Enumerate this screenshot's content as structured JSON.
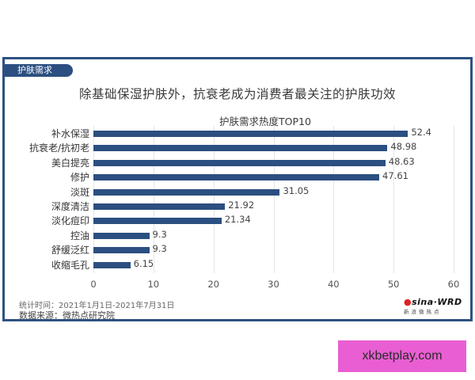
{
  "tag": "护肤需求",
  "headline": "除基础保湿护肤外，抗衰老成为消费者最关注的护肤功效",
  "chart_data": {
    "type": "bar",
    "orientation": "horizontal",
    "title": "护肤需求热度TOP10",
    "categories": [
      "补水保湿",
      "抗衰老/抗初老",
      "美白提亮",
      "修护",
      "淡斑",
      "深度清洁",
      "淡化痘印",
      "控油",
      "舒缓泛红",
      "收缩毛孔"
    ],
    "values": [
      52.4,
      48.98,
      48.63,
      47.61,
      31.05,
      21.92,
      21.34,
      9.3,
      9.3,
      6.15
    ],
    "value_labels": [
      "52.4",
      "48.98",
      "48.63",
      "47.61",
      "31.05",
      "21.92",
      "21.34",
      "9.3",
      "9.3",
      "6.15"
    ],
    "xlabel": "",
    "ylabel": "",
    "xlim": [
      0,
      60
    ],
    "x_ticks": [
      "0",
      "10",
      "20",
      "30",
      "40",
      "50",
      "60"
    ],
    "grid": true,
    "bar_color": "#2b4f80"
  },
  "footer": {
    "period": "统计时间：2021年1月1日-2021年7月31日",
    "source": "数据来源：微热点研究院"
  },
  "logo": {
    "main_left": "sina",
    "main_sep": "·",
    "main_right": "WRD",
    "sub": "新浪微热点"
  },
  "watermark": "xkbetplay.com",
  "colors": {
    "frame": "#2c5282",
    "bar": "#2b4f80",
    "watermark_bg": "#e95ed2"
  }
}
